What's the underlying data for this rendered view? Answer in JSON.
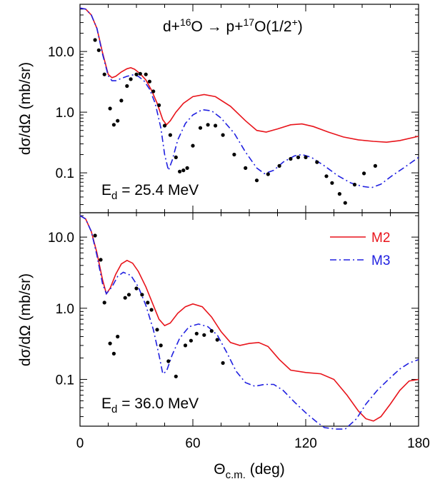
{
  "chart_data": [
    {
      "type": "line",
      "panel": "top",
      "title_parts": [
        "d+",
        "16",
        "O → p+",
        "17",
        "O(1/2",
        "+",
        ")"
      ],
      "energy_parts": [
        "E",
        "d",
        " = 25.4 MeV"
      ],
      "ylabel": "dσ/dΩ  (mb/sr)",
      "xlim": [
        0,
        180
      ],
      "ylim": [
        0.022,
        60
      ],
      "yscale": "log",
      "yticks": [
        0.1,
        1.0,
        10.0
      ],
      "ytick_labels": [
        "0.1",
        "1.0",
        "10.0"
      ],
      "series": [
        {
          "name": "M2",
          "color": "#e8141b",
          "style": "solid",
          "points": [
            [
              0,
              52
            ],
            [
              3,
              50
            ],
            [
              6,
              40
            ],
            [
              9,
              24
            ],
            [
              12,
              9.5
            ],
            [
              15,
              4.2
            ],
            [
              17,
              3.7
            ],
            [
              19,
              3.9
            ],
            [
              22,
              4.6
            ],
            [
              25,
              5.2
            ],
            [
              27,
              5.4
            ],
            [
              29,
              5.1
            ],
            [
              32,
              4.3
            ],
            [
              35,
              3.4
            ],
            [
              38,
              2.3
            ],
            [
              41,
              1.4
            ],
            [
              44,
              0.75
            ],
            [
              46,
              0.62
            ],
            [
              48,
              0.72
            ],
            [
              51,
              1.0
            ],
            [
              55,
              1.4
            ],
            [
              60,
              1.8
            ],
            [
              66,
              1.95
            ],
            [
              72,
              1.8
            ],
            [
              80,
              1.25
            ],
            [
              88,
              0.72
            ],
            [
              94,
              0.5
            ],
            [
              99,
              0.47
            ],
            [
              105,
              0.53
            ],
            [
              112,
              0.62
            ],
            [
              118,
              0.64
            ],
            [
              124,
              0.58
            ],
            [
              132,
              0.47
            ],
            [
              140,
              0.39
            ],
            [
              148,
              0.35
            ],
            [
              156,
              0.33
            ],
            [
              163,
              0.32
            ],
            [
              170,
              0.34
            ],
            [
              180,
              0.4
            ]
          ]
        },
        {
          "name": "M3",
          "color": "#2020e0",
          "style": "dashdot",
          "points": [
            [
              0,
              52
            ],
            [
              3,
              50
            ],
            [
              6,
              40
            ],
            [
              9,
              24
            ],
            [
              12,
              9.0
            ],
            [
              15,
              4.0
            ],
            [
              17,
              3.3
            ],
            [
              19,
              3.3
            ],
            [
              22,
              3.6
            ],
            [
              25,
              3.9
            ],
            [
              28,
              4.1
            ],
            [
              31,
              3.9
            ],
            [
              34,
              3.3
            ],
            [
              37,
              2.4
            ],
            [
              40,
              1.4
            ],
            [
              43,
              0.55
            ],
            [
              45,
              0.2
            ],
            [
              47,
              0.11
            ],
            [
              49,
              0.16
            ],
            [
              52,
              0.35
            ],
            [
              56,
              0.65
            ],
            [
              60,
              0.9
            ],
            [
              65,
              1.1
            ],
            [
              70,
              1.05
            ],
            [
              75,
              0.8
            ],
            [
              82,
              0.45
            ],
            [
              88,
              0.22
            ],
            [
              94,
              0.12
            ],
            [
              98,
              0.097
            ],
            [
              103,
              0.11
            ],
            [
              108,
              0.15
            ],
            [
              114,
              0.19
            ],
            [
              118,
              0.2
            ],
            [
              123,
              0.18
            ],
            [
              130,
              0.13
            ],
            [
              137,
              0.09
            ],
            [
              144,
              0.068
            ],
            [
              150,
              0.06
            ],
            [
              155,
              0.057
            ],
            [
              160,
              0.065
            ],
            [
              166,
              0.09
            ],
            [
              172,
              0.12
            ],
            [
              180,
              0.18
            ]
          ]
        }
      ],
      "experiment_points": [
        [
          8,
          15.5
        ],
        [
          10,
          10.5
        ],
        [
          13,
          4.2
        ],
        [
          16,
          1.15
        ],
        [
          18,
          0.62
        ],
        [
          20,
          0.72
        ],
        [
          22,
          1.55
        ],
        [
          25,
          2.7
        ],
        [
          27,
          3.5
        ],
        [
          30,
          4.2
        ],
        [
          32,
          4.3
        ],
        [
          35,
          4.2
        ],
        [
          37,
          3.2
        ],
        [
          39,
          2.2
        ],
        [
          42,
          1.3
        ],
        [
          45,
          0.6
        ],
        [
          48,
          0.42
        ],
        [
          51,
          0.18
        ],
        [
          53,
          0.105
        ],
        [
          55,
          0.11
        ],
        [
          57,
          0.12
        ],
        [
          60,
          0.28
        ],
        [
          64,
          0.55
        ],
        [
          68,
          0.62
        ],
        [
          72,
          0.6
        ],
        [
          76,
          0.42
        ],
        [
          82,
          0.2
        ],
        [
          88,
          0.12
        ],
        [
          94,
          0.075
        ],
        [
          100,
          0.095
        ],
        [
          106,
          0.13
        ],
        [
          112,
          0.17
        ],
        [
          116,
          0.18
        ],
        [
          120,
          0.18
        ],
        [
          126,
          0.15
        ],
        [
          131,
          0.088
        ],
        [
          134,
          0.068
        ],
        [
          138,
          0.045
        ],
        [
          141,
          0.032
        ],
        [
          146,
          0.064
        ],
        [
          151,
          0.098
        ],
        [
          157,
          0.13
        ]
      ]
    },
    {
      "type": "line",
      "panel": "bottom",
      "energy_parts": [
        "E",
        "d",
        " = 36.0 MeV"
      ],
      "xlabel_parts": [
        "Θ",
        "c.m.",
        "  (deg)"
      ],
      "ylabel": "dσ/dΩ  (mb/sr)",
      "xlim": [
        0,
        180
      ],
      "xticks": [
        0,
        60,
        120,
        180
      ],
      "xtick_labels": [
        "0",
        "60",
        "120",
        "180"
      ],
      "ylim": [
        0.022,
        22
      ],
      "yscale": "log",
      "yticks": [
        0.1,
        1.0,
        10.0
      ],
      "ytick_labels": [
        "0.1",
        "1.0",
        "10.0"
      ],
      "legend": {
        "position": "top-right",
        "entries": [
          "M2",
          "M3"
        ]
      },
      "series": [
        {
          "name": "M2",
          "color": "#e8141b",
          "style": "solid",
          "points": [
            [
              0,
              20
            ],
            [
              3,
              18
            ],
            [
              6,
              12
            ],
            [
              9,
              6
            ],
            [
              12,
              2.5
            ],
            [
              14,
              1.6
            ],
            [
              16,
              1.9
            ],
            [
              19,
              3.0
            ],
            [
              22,
              4.2
            ],
            [
              25,
              4.7
            ],
            [
              28,
              4.3
            ],
            [
              31,
              3.3
            ],
            [
              35,
              2.0
            ],
            [
              39,
              1.1
            ],
            [
              42,
              0.7
            ],
            [
              45,
              0.57
            ],
            [
              48,
              0.62
            ],
            [
              52,
              0.85
            ],
            [
              56,
              1.05
            ],
            [
              60,
              1.15
            ],
            [
              65,
              1.05
            ],
            [
              70,
              0.75
            ],
            [
              75,
              0.47
            ],
            [
              80,
              0.33
            ],
            [
              85,
              0.3
            ],
            [
              90,
              0.32
            ],
            [
              95,
              0.33
            ],
            [
              100,
              0.29
            ],
            [
              106,
              0.19
            ],
            [
              112,
              0.135
            ],
            [
              120,
              0.125
            ],
            [
              128,
              0.12
            ],
            [
              135,
              0.1
            ],
            [
              142,
              0.06
            ],
            [
              148,
              0.036
            ],
            [
              152,
              0.028
            ],
            [
              156,
              0.026
            ],
            [
              160,
              0.03
            ],
            [
              165,
              0.045
            ],
            [
              170,
              0.07
            ],
            [
              175,
              0.095
            ],
            [
              180,
              0.1
            ]
          ]
        },
        {
          "name": "M3",
          "color": "#2020e0",
          "style": "dashdot",
          "points": [
            [
              0,
              20
            ],
            [
              3,
              18
            ],
            [
              6,
              12
            ],
            [
              9,
              5.5
            ],
            [
              12,
              2.2
            ],
            [
              14,
              1.6
            ],
            [
              17,
              2.0
            ],
            [
              20,
              2.8
            ],
            [
              23,
              3.2
            ],
            [
              27,
              2.9
            ],
            [
              31,
              2.0
            ],
            [
              35,
              1.1
            ],
            [
              39,
              0.5
            ],
            [
              42,
              0.22
            ],
            [
              44,
              0.12
            ],
            [
              46,
              0.13
            ],
            [
              49,
              0.22
            ],
            [
              53,
              0.38
            ],
            [
              58,
              0.55
            ],
            [
              63,
              0.6
            ],
            [
              68,
              0.55
            ],
            [
              73,
              0.42
            ],
            [
              78,
              0.24
            ],
            [
              83,
              0.13
            ],
            [
              88,
              0.09
            ],
            [
              93,
              0.08
            ],
            [
              98,
              0.085
            ],
            [
              103,
              0.085
            ],
            [
              108,
              0.07
            ],
            [
              114,
              0.048
            ],
            [
              120,
              0.034
            ],
            [
              126,
              0.025
            ],
            [
              130,
              0.021
            ],
            [
              136,
              0.02
            ],
            [
              141,
              0.02
            ],
            [
              147,
              0.028
            ],
            [
              152,
              0.045
            ],
            [
              158,
              0.07
            ],
            [
              164,
              0.1
            ],
            [
              170,
              0.14
            ],
            [
              175,
              0.17
            ],
            [
              180,
              0.19
            ]
          ]
        }
      ],
      "experiment_points": [
        [
          8,
          10.5
        ],
        [
          11,
          4.8
        ],
        [
          13,
          1.2
        ],
        [
          16,
          0.32
        ],
        [
          18,
          0.23
        ],
        [
          20,
          0.4
        ],
        [
          24,
          1.4
        ],
        [
          26,
          1.55
        ],
        [
          30,
          1.9
        ],
        [
          33,
          1.55
        ],
        [
          36,
          1.2
        ],
        [
          38,
          0.95
        ],
        [
          41,
          0.5
        ],
        [
          43,
          0.3
        ],
        [
          47,
          0.18
        ],
        [
          51,
          0.11
        ],
        [
          56,
          0.3
        ],
        [
          59,
          0.35
        ],
        [
          62,
          0.44
        ],
        [
          66,
          0.42
        ],
        [
          70,
          0.48
        ],
        [
          73,
          0.36
        ],
        [
          76,
          0.17
        ]
      ]
    }
  ]
}
